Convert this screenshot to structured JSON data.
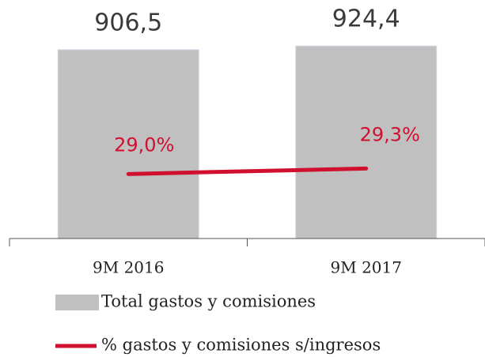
{
  "chart_data": {
    "type": "bar",
    "categories": [
      "9M 2016",
      "9M 2017"
    ],
    "series": [
      {
        "name": "Total gastos y comisiones",
        "type": "bar",
        "color": "#c0c0c0",
        "values": [
          906.5,
          924.4
        ],
        "value_labels": [
          "906,5",
          "924,4"
        ]
      },
      {
        "name": "% gastos y comisiones s/ingresos",
        "type": "line",
        "color": "#d0102e",
        "axis": "y2",
        "values": [
          29.0,
          29.3
        ],
        "value_labels": [
          "29,0%",
          "29,3%"
        ]
      }
    ],
    "ylim": [
      0,
      1000
    ],
    "y2lim": [
      25.5,
      36.8
    ],
    "grid": false
  }
}
